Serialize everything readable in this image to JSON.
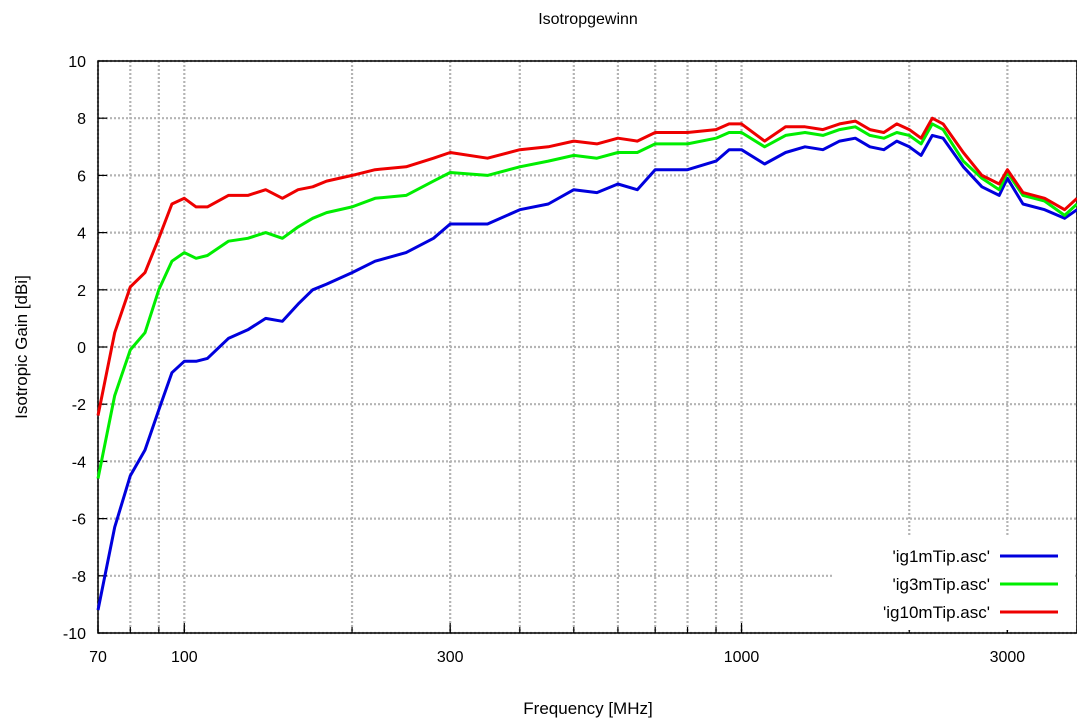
{
  "chart_data": {
    "type": "line",
    "title": "Isotropgewinn",
    "xlabel": "Frequency [MHz]",
    "ylabel": "Isotropic Gain [dBi]",
    "xscale": "log",
    "xlim": [
      70,
      4000
    ],
    "ylim": [
      -10,
      10
    ],
    "xticks": [
      70,
      100,
      300,
      1000,
      3000
    ],
    "yticks": [
      -10,
      -8,
      -6,
      -4,
      -2,
      0,
      2,
      4,
      6,
      8,
      10
    ],
    "grid": true,
    "legend_position": "bottom-right",
    "series": [
      {
        "name": "'ig1mTip.asc'",
        "color": "#0000dd",
        "x": [
          70,
          75,
          80,
          85,
          90,
          95,
          100,
          105,
          110,
          120,
          130,
          140,
          150,
          160,
          170,
          180,
          200,
          220,
          250,
          280,
          300,
          350,
          400,
          450,
          500,
          550,
          600,
          650,
          700,
          800,
          900,
          950,
          1000,
          1100,
          1200,
          1300,
          1400,
          1500,
          1600,
          1700,
          1800,
          1900,
          2000,
          2100,
          2200,
          2300,
          2500,
          2700,
          2900,
          3000,
          3200,
          3500,
          3800,
          4000
        ],
        "y": [
          -9.2,
          -6.3,
          -4.5,
          -3.6,
          -2.2,
          -0.9,
          -0.5,
          -0.5,
          -0.4,
          0.3,
          0.6,
          1.0,
          0.9,
          1.5,
          2.0,
          2.2,
          2.6,
          3.0,
          3.3,
          3.8,
          4.3,
          4.3,
          4.8,
          5.0,
          5.5,
          5.4,
          5.7,
          5.5,
          6.2,
          6.2,
          6.5,
          6.9,
          6.9,
          6.4,
          6.8,
          7.0,
          6.9,
          7.2,
          7.3,
          7.0,
          6.9,
          7.2,
          7.0,
          6.7,
          7.4,
          7.3,
          6.3,
          5.6,
          5.3,
          5.9,
          5.0,
          4.8,
          4.5,
          4.8
        ]
      },
      {
        "name": "'ig3mTip.asc'",
        "color": "#00ee00",
        "x": [
          70,
          75,
          80,
          85,
          90,
          95,
          100,
          105,
          110,
          120,
          130,
          140,
          150,
          160,
          170,
          180,
          200,
          220,
          250,
          280,
          300,
          350,
          400,
          450,
          500,
          550,
          600,
          650,
          700,
          800,
          900,
          950,
          1000,
          1100,
          1200,
          1300,
          1400,
          1500,
          1600,
          1700,
          1800,
          1900,
          2000,
          2100,
          2200,
          2300,
          2500,
          2700,
          2900,
          3000,
          3200,
          3500,
          3800,
          4000
        ],
        "y": [
          -4.6,
          -1.7,
          -0.1,
          0.5,
          2.0,
          3.0,
          3.3,
          3.1,
          3.2,
          3.7,
          3.8,
          4.0,
          3.8,
          4.2,
          4.5,
          4.7,
          4.9,
          5.2,
          5.3,
          5.8,
          6.1,
          6.0,
          6.3,
          6.5,
          6.7,
          6.6,
          6.8,
          6.8,
          7.1,
          7.1,
          7.3,
          7.5,
          7.5,
          7.0,
          7.4,
          7.5,
          7.4,
          7.6,
          7.7,
          7.4,
          7.3,
          7.5,
          7.4,
          7.1,
          7.8,
          7.6,
          6.5,
          5.9,
          5.5,
          6.1,
          5.3,
          5.1,
          4.6,
          5.0
        ]
      },
      {
        "name": "'ig10mTip.asc'",
        "color": "#ee0000",
        "x": [
          70,
          75,
          80,
          85,
          90,
          95,
          100,
          105,
          110,
          120,
          130,
          140,
          150,
          160,
          170,
          180,
          200,
          220,
          250,
          280,
          300,
          350,
          400,
          450,
          500,
          550,
          600,
          650,
          700,
          800,
          900,
          950,
          1000,
          1100,
          1200,
          1300,
          1400,
          1500,
          1600,
          1700,
          1800,
          1900,
          2000,
          2100,
          2200,
          2300,
          2500,
          2700,
          2900,
          3000,
          3200,
          3500,
          3800,
          4000
        ],
        "y": [
          -2.4,
          0.5,
          2.1,
          2.6,
          3.8,
          5.0,
          5.2,
          4.9,
          4.9,
          5.3,
          5.3,
          5.5,
          5.2,
          5.5,
          5.6,
          5.8,
          6.0,
          6.2,
          6.3,
          6.6,
          6.8,
          6.6,
          6.9,
          7.0,
          7.2,
          7.1,
          7.3,
          7.2,
          7.5,
          7.5,
          7.6,
          7.8,
          7.8,
          7.2,
          7.7,
          7.7,
          7.6,
          7.8,
          7.9,
          7.6,
          7.5,
          7.8,
          7.6,
          7.3,
          8.0,
          7.8,
          6.8,
          6.0,
          5.7,
          6.2,
          5.4,
          5.2,
          4.8,
          5.2
        ]
      }
    ]
  }
}
